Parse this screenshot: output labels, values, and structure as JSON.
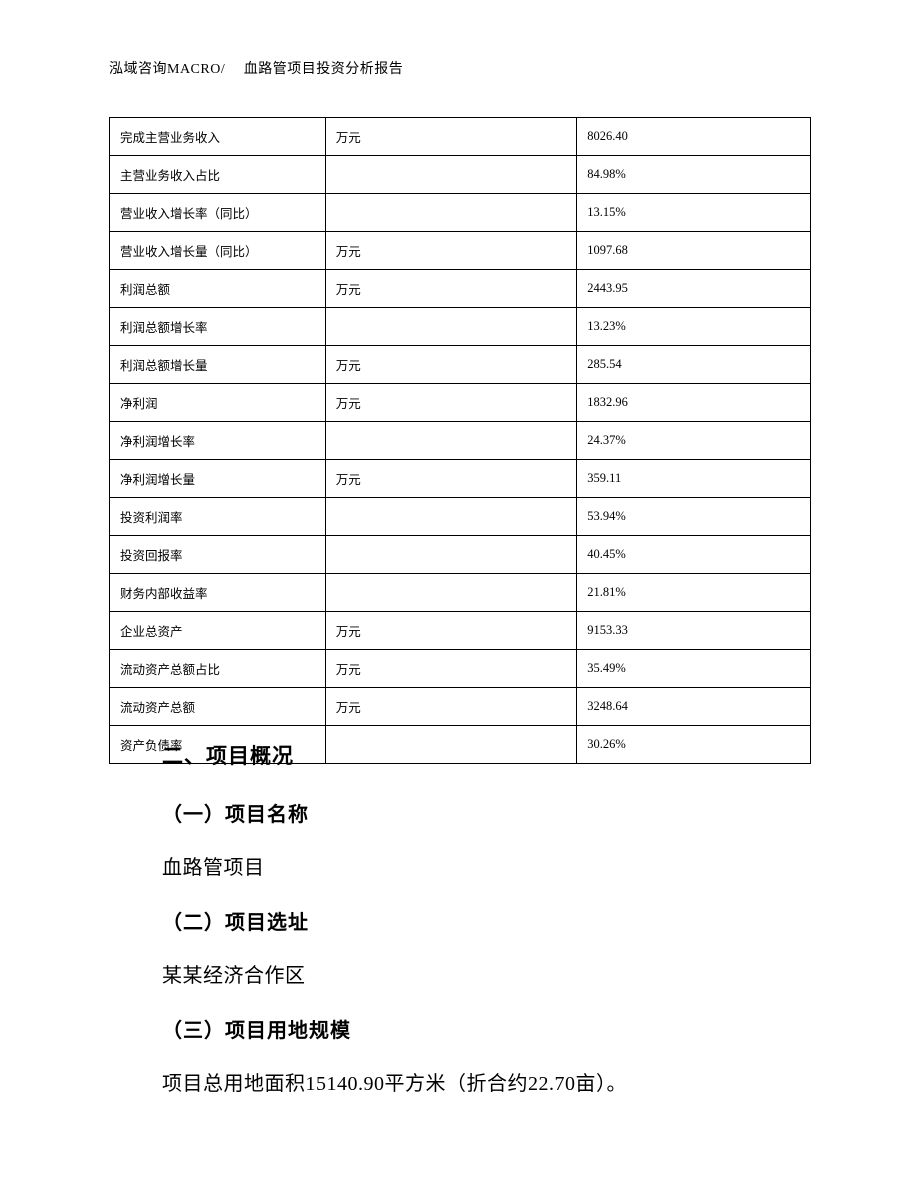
{
  "header": {
    "text": "泓域咨询MACRO/　 血路管项目投资分析报告"
  },
  "table": {
    "rows": [
      {
        "label": "完成主营业务收入",
        "unit": "万元",
        "value": "8026.40"
      },
      {
        "label": "主营业务收入占比",
        "unit": "",
        "value": "84.98%"
      },
      {
        "label": "营业收入增长率（同比）",
        "unit": "",
        "value": "13.15%"
      },
      {
        "label": "营业收入增长量（同比）",
        "unit": "万元",
        "value": "1097.68"
      },
      {
        "label": "利润总额",
        "unit": "万元",
        "value": "2443.95"
      },
      {
        "label": "利润总额增长率",
        "unit": "",
        "value": "13.23%"
      },
      {
        "label": "利润总额增长量",
        "unit": "万元",
        "value": "285.54"
      },
      {
        "label": "净利润",
        "unit": "万元",
        "value": "1832.96"
      },
      {
        "label": "净利润增长率",
        "unit": "",
        "value": "24.37%"
      },
      {
        "label": "净利润增长量",
        "unit": "万元",
        "value": "359.11"
      },
      {
        "label": "投资利润率",
        "unit": "",
        "value": "53.94%"
      },
      {
        "label": "投资回报率",
        "unit": "",
        "value": "40.45%"
      },
      {
        "label": "财务内部收益率",
        "unit": "",
        "value": "21.81%"
      },
      {
        "label": "企业总资产",
        "unit": "万元",
        "value": "9153.33"
      },
      {
        "label": "流动资产总额占比",
        "unit": "万元",
        "value": "35.49%"
      },
      {
        "label": "流动资产总额",
        "unit": "万元",
        "value": "3248.64"
      },
      {
        "label": "资产负债率",
        "unit": "",
        "value": "30.26%"
      }
    ]
  },
  "section": {
    "heading": "二、项目概况",
    "sub1_heading": "（一）项目名称",
    "sub1_text": "血路管项目",
    "sub2_heading": "（二）项目选址",
    "sub2_text": "某某经济合作区",
    "sub3_heading": "（三）项目用地规模",
    "sub3_text": "项目总用地面积15140.90平方米（折合约22.70亩）。"
  }
}
